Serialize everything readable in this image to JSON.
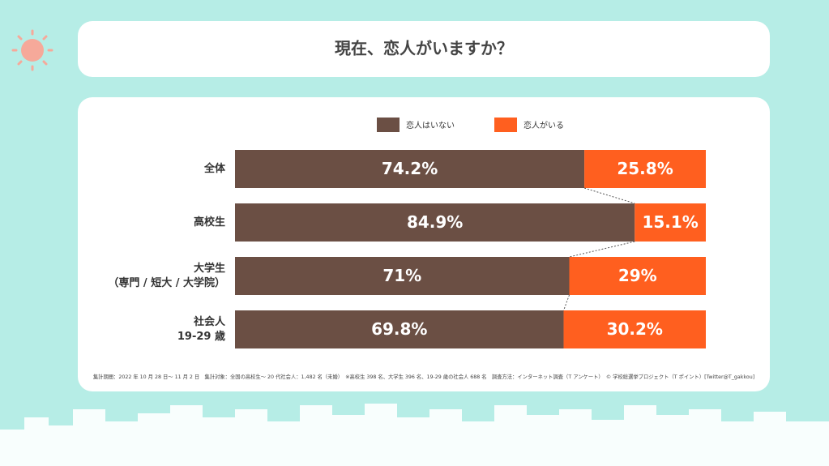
{
  "chart_data": {
    "type": "stacked-bar-horizontal",
    "title": "現在、恋人がいますか？",
    "categories": [
      "全体",
      "高校生",
      "大学生\n（専門 / 短大 / 大学院）",
      "社会人\n19-29 歳"
    ],
    "series": [
      {
        "name": "恋人はいない",
        "color": "#6b4f44",
        "values": [
          74.2,
          84.9,
          71,
          69.8
        ],
        "value_labels": [
          "74.2%",
          "84.9%",
          "71%",
          "69.8%"
        ]
      },
      {
        "name": "恋人がいる",
        "color": "#ff5f1f",
        "values": [
          25.8,
          15.1,
          29,
          30.2
        ],
        "value_labels": [
          "25.8%",
          "15.1%",
          "29%",
          "30.2%"
        ]
      }
    ],
    "xlim": [
      0,
      100
    ],
    "footnote": "集計期間：2022 年 10 月 28 日〜 11 月 2 日　集計対象：全国の高校生〜 20 代社会人：1,482 名（未婚）　※高校生 398 名、大学生 396 名、19-29 歳の社会人 688 名　調査方法：インターネット調査（T アンケート）　© 学校総選挙プロジェクト（T ポイント）[Twitter@T_gakkou]"
  }
}
